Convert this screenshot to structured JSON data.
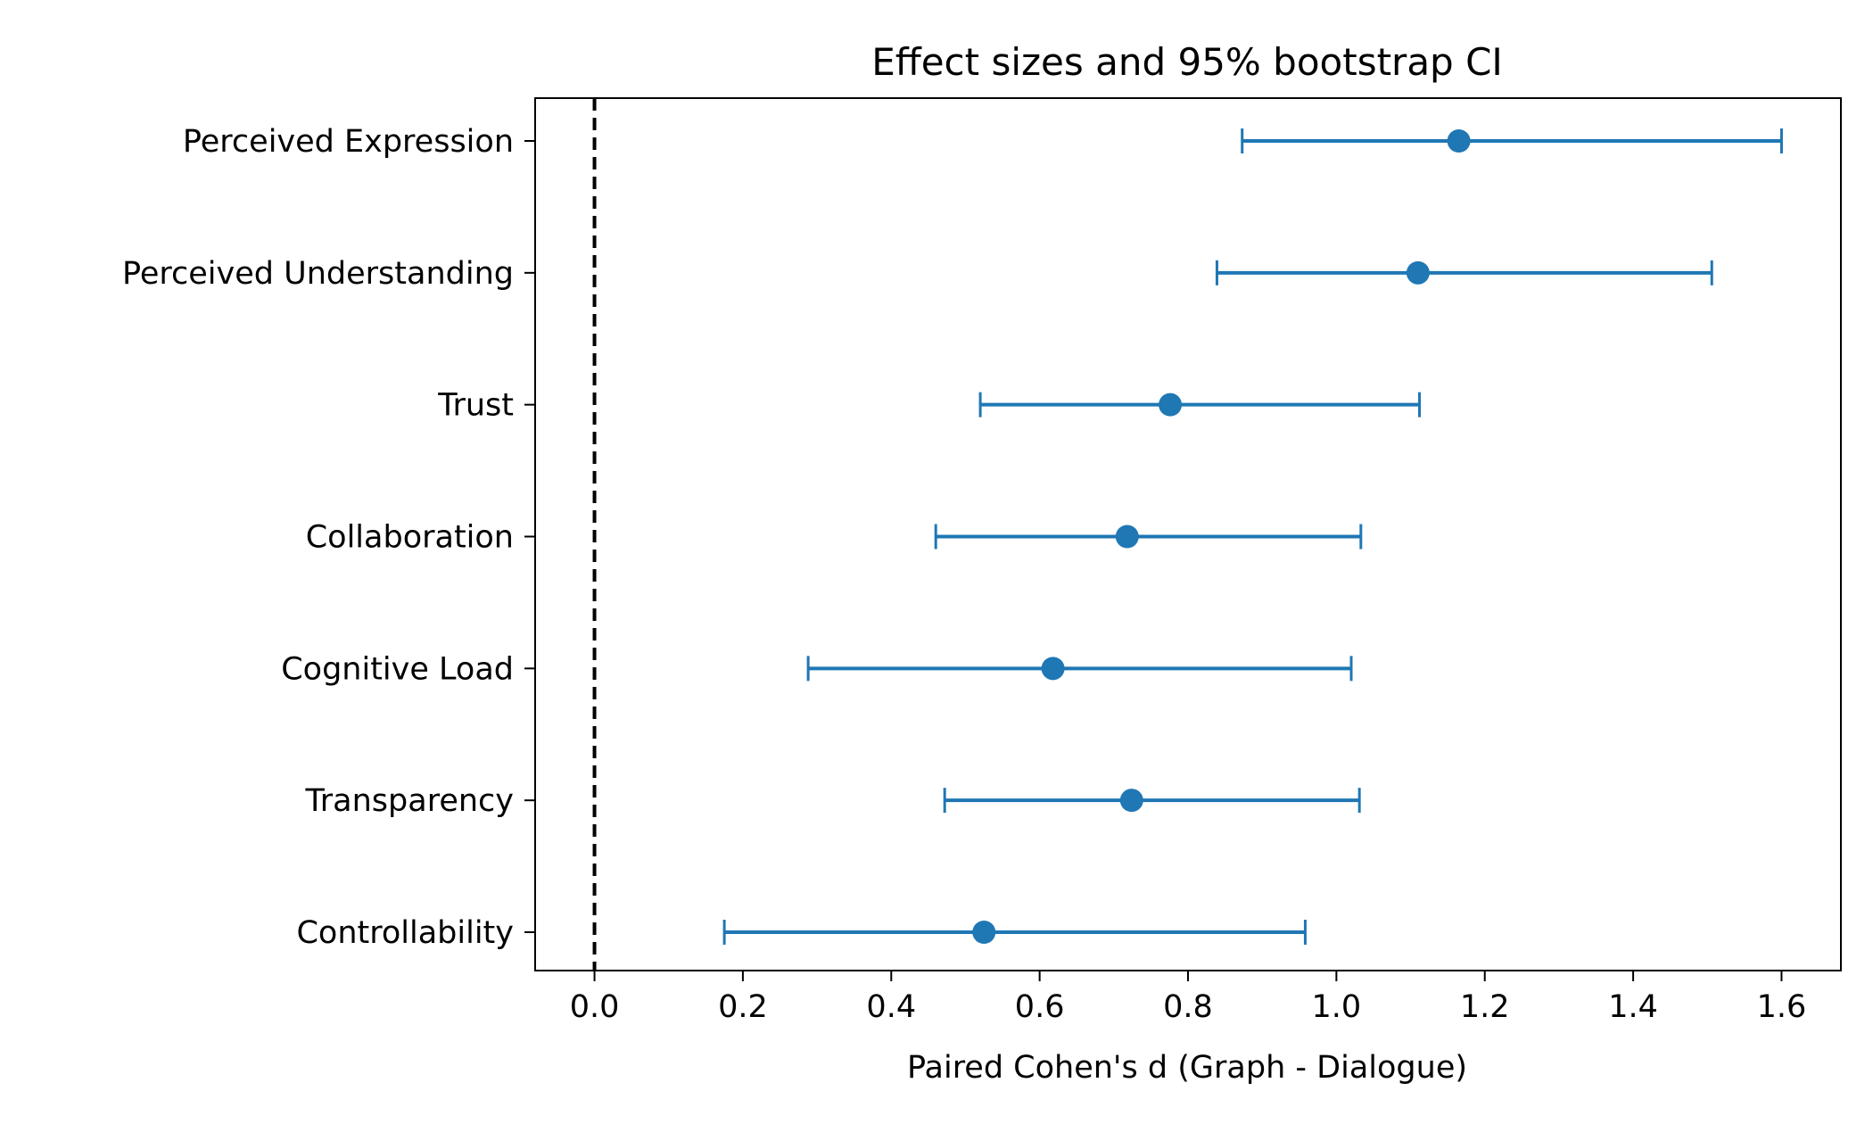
{
  "chart_data": {
    "type": "scatter",
    "title": "Effect sizes and 95% bootstrap CI",
    "xlabel": "Paired Cohen's d (Graph - Dialogue)",
    "ylabel": "",
    "xlim": [
      -0.08,
      1.68
    ],
    "xticks": [
      "0.0",
      "0.2",
      "0.4",
      "0.6",
      "0.8",
      "1.0",
      "1.2",
      "1.4",
      "1.6"
    ],
    "reference_line": {
      "x": 0,
      "style": "dashed",
      "color": "#000000"
    },
    "grid": false,
    "color": "#1f77b4",
    "categories": [
      "Perceived Expression",
      "Perceived Understanding",
      "Trust",
      "Collaboration",
      "Cognitive Load",
      "Transparency",
      "Controllability"
    ],
    "values": [
      1.165,
      1.11,
      0.776,
      0.718,
      0.618,
      0.724,
      0.525
    ],
    "ci_low": [
      0.873,
      0.839,
      0.52,
      0.46,
      0.288,
      0.472,
      0.175
    ],
    "ci_high": [
      1.6,
      1.506,
      1.112,
      1.033,
      1.02,
      1.031,
      0.958
    ]
  }
}
